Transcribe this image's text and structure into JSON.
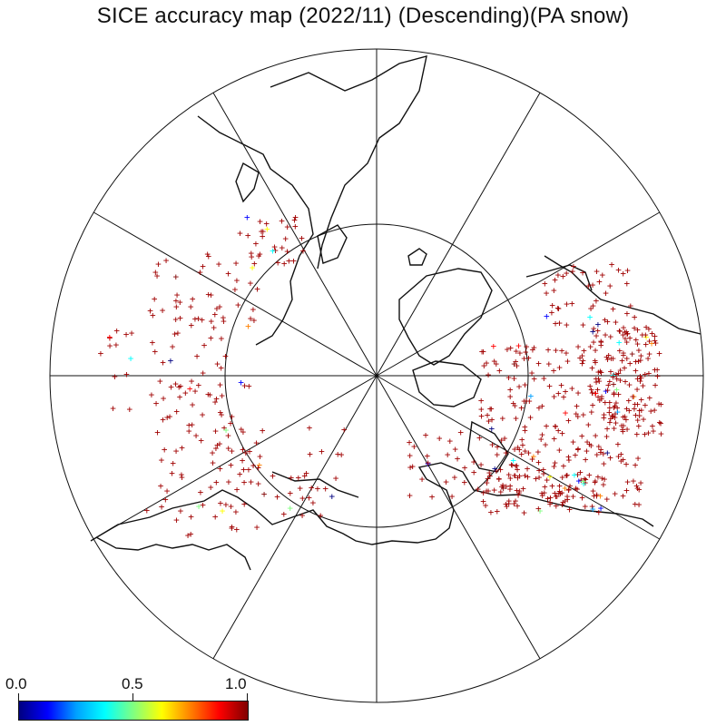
{
  "title": "SICE accuracy map (2022/11) (Descending)(PA snow)",
  "colorbar": {
    "min_label": "0.0",
    "mid_label": "0.5",
    "max_label": "1.0",
    "colors": [
      "#000080",
      "#0000ff",
      "#00a0ff",
      "#00ffff",
      "#80ff80",
      "#ffff00",
      "#ff8000",
      "#ff0000",
      "#800000"
    ]
  },
  "map": {
    "projection": "north polar stereographic",
    "meridian_count": 12,
    "inner_latitude_circle": true,
    "marker": "+",
    "marker_color": "#a00000"
  }
}
